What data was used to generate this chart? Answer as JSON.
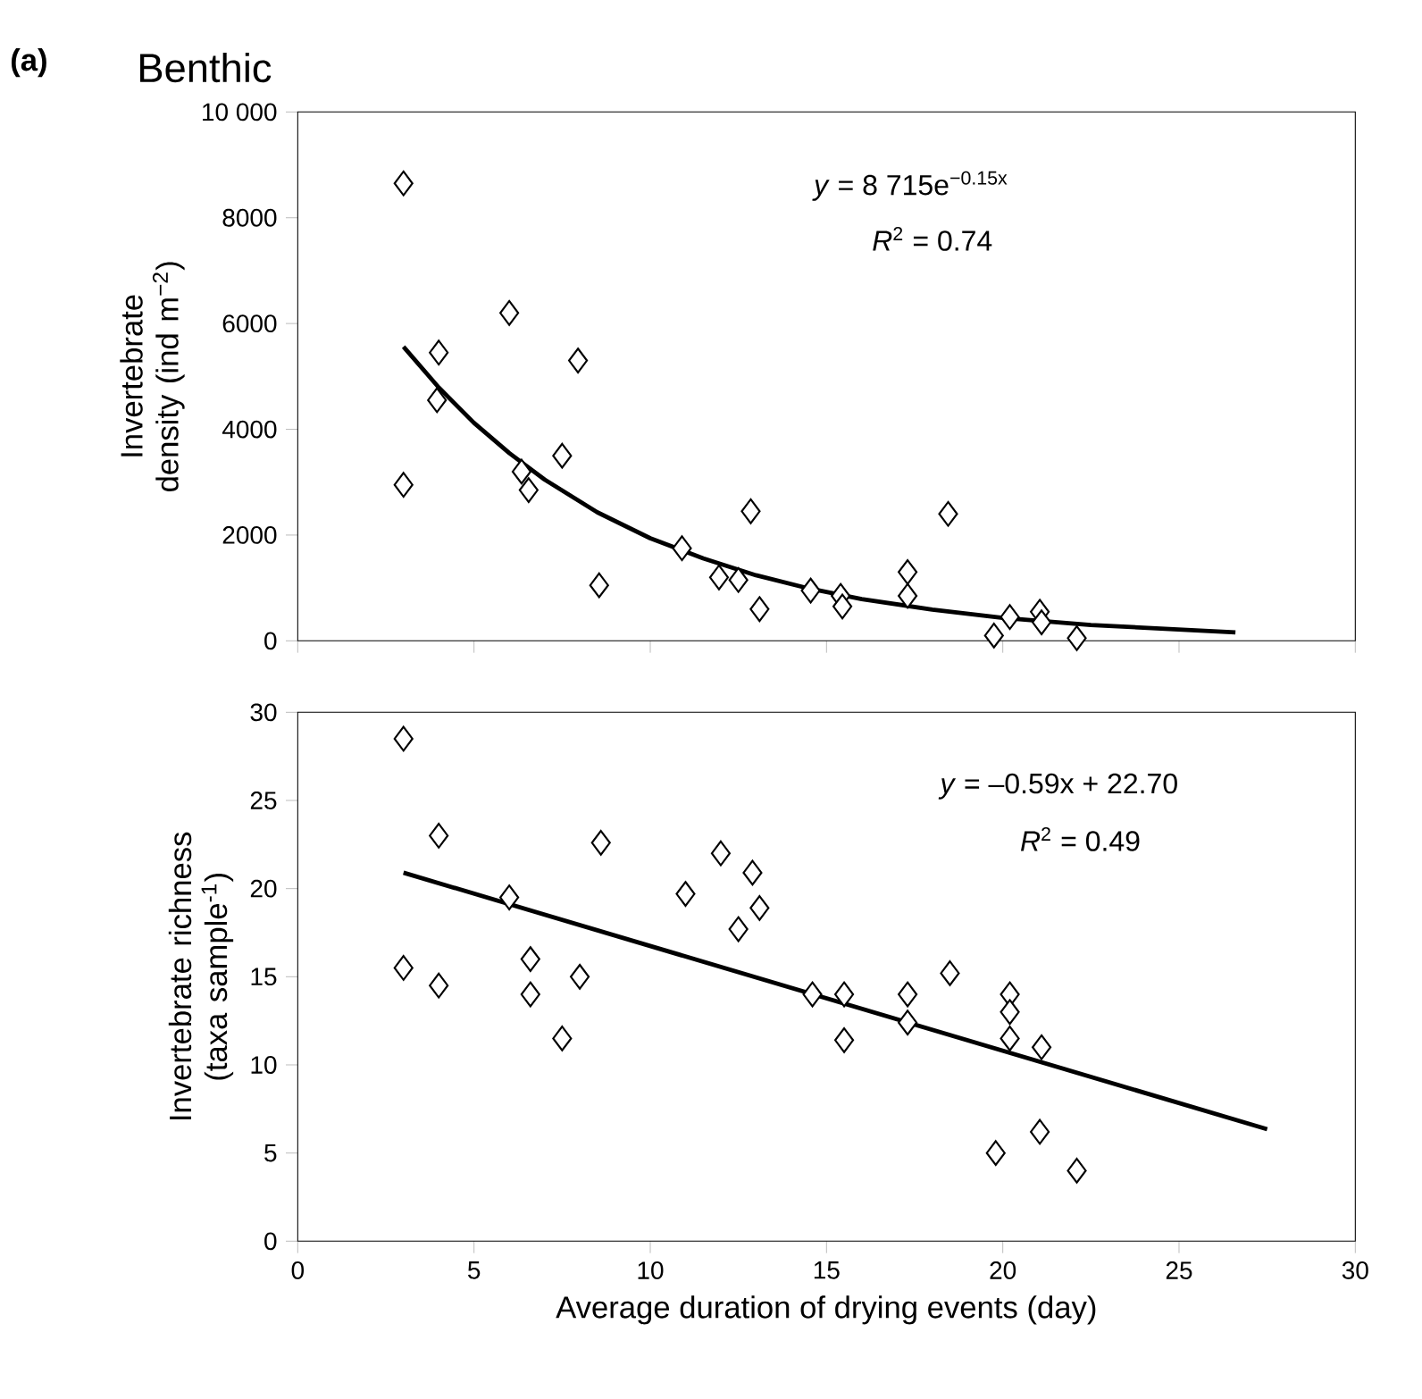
{
  "chart_data": [
    {
      "type": "scatter",
      "title": "Benthic",
      "ylabel": "Invertebrate density (ind m$^{−2}$)",
      "annotations": [
        "(a)",
        "*y* = 8 715e$^{−0.15x}$",
        "*R*$^{2}$ = 0.74"
      ],
      "xlim": [
        0,
        30
      ],
      "xticks": [
        0,
        5,
        10,
        15,
        20,
        25,
        30
      ],
      "ylim": [
        0,
        10000
      ],
      "yticks": [
        0,
        2000,
        4000,
        6000,
        8000,
        {
          "value": 10000,
          "label": "10 000"
        }
      ],
      "tick_labels": "y",
      "marker": "diamond",
      "series": [
        {
          "color": "#000000",
          "x": [
            3,
            3,
            4,
            3.95,
            6,
            6.35,
            6.55,
            7.5,
            7.95,
            8.55,
            10.9,
            11.95,
            12.5,
            12.85,
            13.1,
            14.55,
            15.4,
            15.45,
            17.3,
            17.3,
            18.45,
            19.75,
            20.2,
            21.05,
            21.1,
            22.1
          ],
          "values": [
            8650,
            2950,
            5450,
            4550,
            6200,
            3200,
            2850,
            3500,
            5300,
            1050,
            1750,
            1200,
            1150,
            2450,
            600,
            950,
            850,
            650,
            1300,
            850,
            2400,
            100,
            450,
            550,
            350,
            50
          ]
        },
        {
          "type": "line",
          "color": "#000000",
          "marker": "none",
          "x": [
            3,
            4,
            5,
            6,
            7,
            8.5,
            10,
            11.5,
            13,
            14.5,
            16,
            18,
            20,
            22.5,
            26.6
          ],
          "values": [
            5560,
            4790,
            4120,
            3550,
            3050,
            2430,
            1940,
            1560,
            1240,
            990,
            790,
            590,
            435,
            300,
            160
          ]
        }
      ]
    },
    {
      "type": "scatter",
      "xlabel": "Average duration of drying events (day)",
      "ylabel": "Invertebrate richness (taxa sample$^{-1}$)",
      "annotations": [
        "*y* = –0.59x + 22.70",
        "*R*$^{2}$ = 0.49"
      ],
      "xlim": [
        0,
        30
      ],
      "xticks": [
        0,
        5,
        10,
        15,
        20,
        25,
        30
      ],
      "ylim": [
        0,
        30
      ],
      "yticks": [
        0,
        5,
        10,
        15,
        20,
        25,
        30
      ],
      "marker": "diamond",
      "series": [
        {
          "color": "#000000",
          "x": [
            3,
            3,
            4,
            4,
            6,
            6.6,
            6.6,
            7.5,
            8,
            8.6,
            11,
            12,
            12.5,
            12.9,
            13.1,
            14.6,
            15.5,
            15.5,
            17.3,
            17.3,
            18.5,
            19.8,
            20.2,
            20.2,
            20.2,
            21.1,
            21.05,
            22.1
          ],
          "values": [
            28.5,
            15.5,
            23,
            14.5,
            19.5,
            16,
            14,
            11.5,
            15,
            22.6,
            19.7,
            22,
            17.7,
            20.9,
            18.9,
            14,
            14,
            11.4,
            14,
            12.4,
            15.2,
            5,
            14,
            13,
            11.5,
            11,
            6.2,
            4
          ]
        },
        {
          "type": "line",
          "color": "#000000",
          "marker": "none",
          "x": [
            3,
            27.5
          ],
          "values": [
            20.9,
            6.35
          ]
        }
      ]
    }
  ]
}
